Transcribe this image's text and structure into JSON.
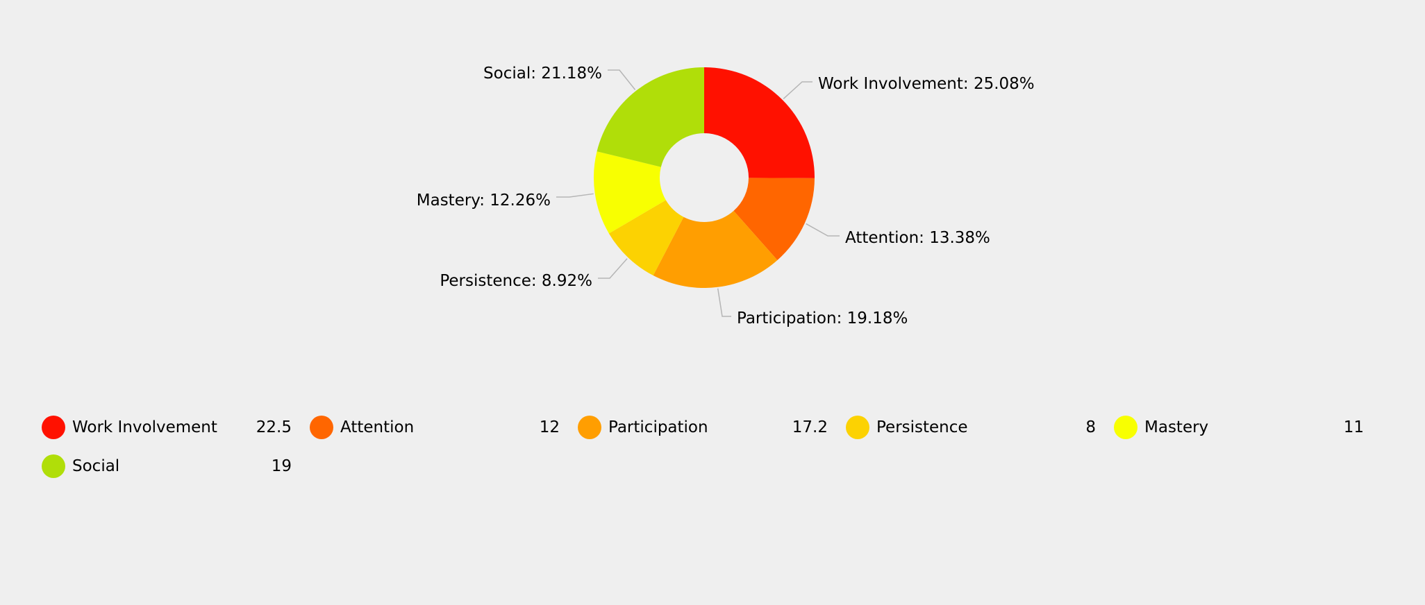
{
  "chart_data": {
    "type": "pie",
    "donut": true,
    "categories": [
      "Work Involvement",
      "Attention",
      "Participation",
      "Persistence",
      "Mastery",
      "Social"
    ],
    "values": [
      22.5,
      12,
      17.2,
      8,
      11,
      19
    ],
    "percent_labels": [
      "Work Involvement: 25.08%",
      "Attention: 13.38%",
      "Participation: 19.18%",
      "Persistence: 8.92%",
      "Mastery: 12.26%",
      "Social: 21.18%"
    ],
    "value_labels": [
      "22.5",
      "12",
      "17.2",
      "8",
      "11",
      "19"
    ],
    "colors": [
      "#ff1100",
      "#ff6600",
      "#ff9e01",
      "#fcd202",
      "#f8ff01",
      "#b0de09"
    ],
    "legend_position": "bottom"
  }
}
